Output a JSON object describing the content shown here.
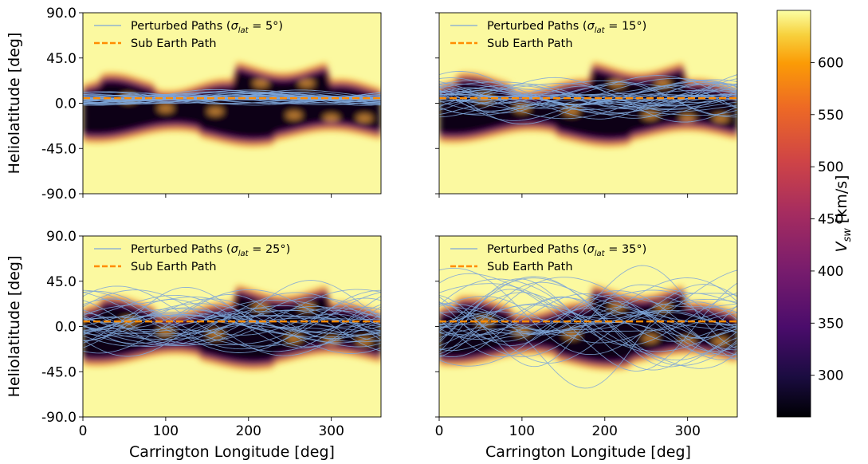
{
  "chart_data": [
    {
      "type": "heatmap",
      "panel": "top-left",
      "xlim": [
        0,
        360
      ],
      "ylim": [
        -90,
        90
      ],
      "xticks": [],
      "yticks": [
        "90.0",
        "45.0",
        "0.0",
        "-45.0",
        "-90.0"
      ],
      "xlabel": "",
      "ylabel": "Heliolatitude [deg]",
      "legend": {
        "location": "upper-left",
        "entries": [
          "Perturbed Paths (σ_lat = 5°)",
          "Sub Earth Path"
        ]
      },
      "sigma_lat": 5,
      "sub_earth_lat": 5
    },
    {
      "type": "heatmap",
      "panel": "top-right",
      "xlim": [
        0,
        360
      ],
      "ylim": [
        -90,
        90
      ],
      "xticks": [],
      "yticks": [],
      "xlabel": "",
      "ylabel": "",
      "legend": {
        "location": "upper-left",
        "entries": [
          "Perturbed Paths (σ_lat = 15°)",
          "Sub Earth Path"
        ]
      },
      "sigma_lat": 15,
      "sub_earth_lat": 5
    },
    {
      "type": "heatmap",
      "panel": "bottom-left",
      "xlim": [
        0,
        360
      ],
      "ylim": [
        -90,
        90
      ],
      "xticks": [
        "0",
        "100",
        "200",
        "300"
      ],
      "yticks": [
        "90.0",
        "45.0",
        "0.0",
        "-45.0",
        "-90.0"
      ],
      "xlabel": "Carrington Longitude [deg]",
      "ylabel": "Heliolatitude [deg]",
      "legend": {
        "location": "upper-left",
        "entries": [
          "Perturbed Paths (σ_lat = 25°)",
          "Sub Earth Path"
        ]
      },
      "sigma_lat": 25,
      "sub_earth_lat": 5
    },
    {
      "type": "heatmap",
      "panel": "bottom-right",
      "xlim": [
        0,
        360
      ],
      "ylim": [
        -90,
        90
      ],
      "xticks": [
        "0",
        "100",
        "200",
        "300"
      ],
      "yticks": [],
      "xlabel": "Carrington Longitude [deg]",
      "ylabel": "",
      "legend": {
        "location": "upper-left",
        "entries": [
          "Perturbed Paths (σ_lat = 35°)",
          "Sub Earth Path"
        ]
      },
      "sigma_lat": 35,
      "sub_earth_lat": 5
    }
  ],
  "colorbar": {
    "label": "V_sw [km/s]",
    "range": [
      260,
      650
    ],
    "ticks": [
      "300",
      "350",
      "400",
      "450",
      "500",
      "550",
      "600"
    ],
    "tick_values": [
      300,
      350,
      400,
      450,
      500,
      550,
      600
    ],
    "colormap": "inferno"
  },
  "colors": {
    "perturbed_path": "#7ea6d8",
    "sub_earth_path": "#ff8c00",
    "fast_wind": "#fbf9a0",
    "slow_wind": "#000004"
  }
}
